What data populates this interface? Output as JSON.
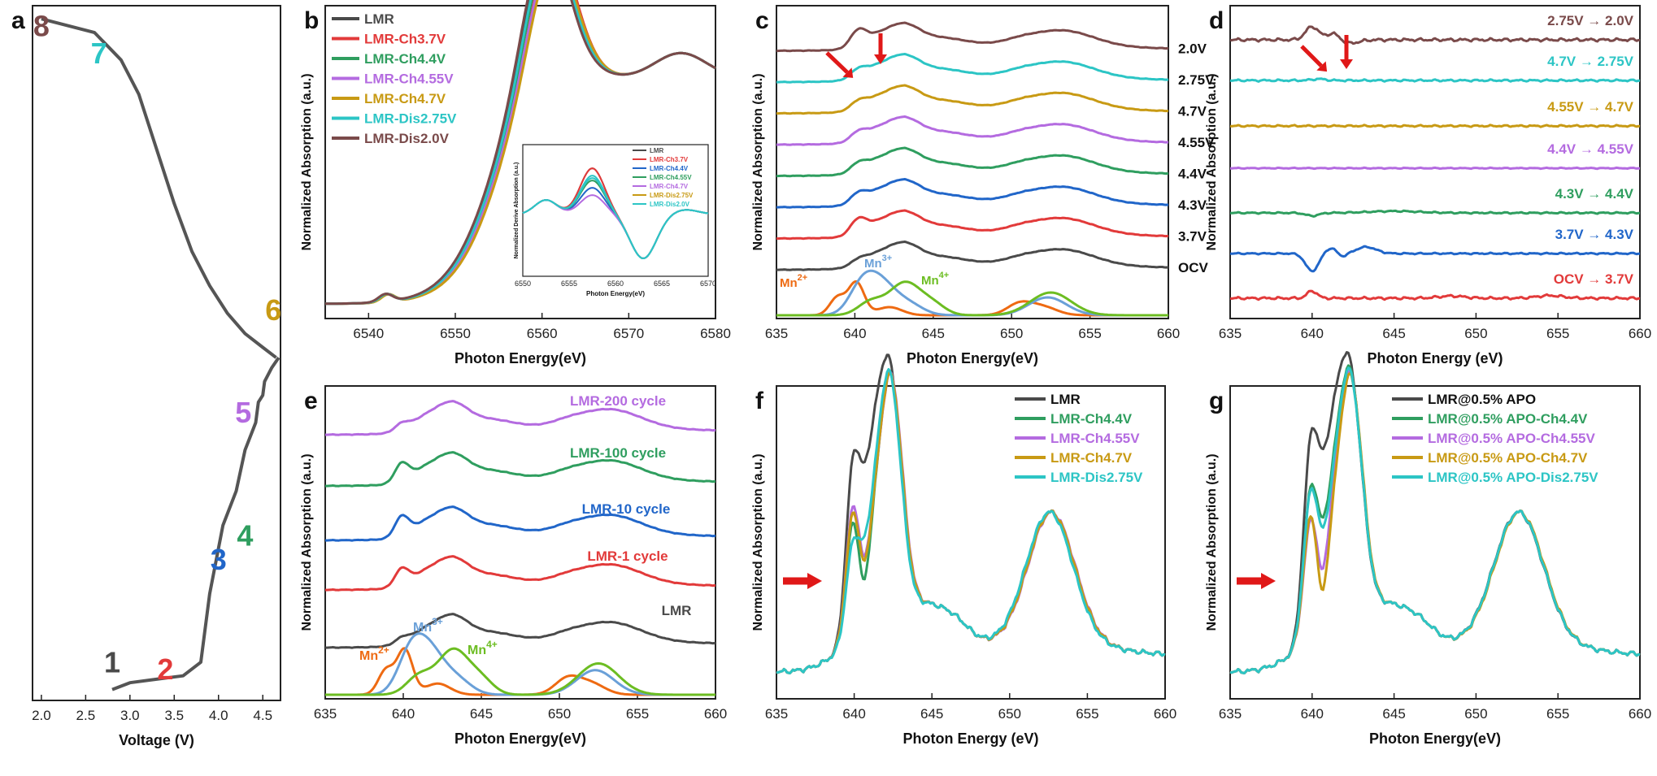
{
  "colors": {
    "black": "#4a4a4a",
    "red": "#e23a3a",
    "green": "#2f9e5f",
    "purple": "#b46be0",
    "gold": "#c89a14",
    "cyan": "#2cc5c5",
    "brown": "#7a4a4a",
    "blue": "#2166c9",
    "orange": "#ee6a12",
    "lightblue": "#6aa0d8",
    "lime": "#6cbd22",
    "arrow": "#e01818"
  },
  "chart_data": [
    {
      "panel": "a",
      "type": "line",
      "title": "",
      "xlabel": "Voltage (V)",
      "ylabel": "",
      "xlim": [
        1.9,
        4.7
      ],
      "xticks": [
        "2.0",
        "2.5",
        "3.0",
        "3.5",
        "4.0",
        "4.5"
      ],
      "points": [
        {
          "label": "8",
          "color": "brown"
        },
        {
          "label": "7",
          "color": "cyan"
        },
        {
          "label": "6",
          "color": "gold"
        },
        {
          "label": "5",
          "color": "purple"
        },
        {
          "label": "4",
          "color": "green"
        },
        {
          "label": "3",
          "color": "blue"
        },
        {
          "label": "2",
          "color": "red"
        },
        {
          "label": "1",
          "color": "black"
        }
      ],
      "curve": {
        "discharge": [
          [
            2.0,
            0.99
          ],
          [
            2.6,
            0.97
          ],
          [
            2.9,
            0.93
          ],
          [
            3.1,
            0.88
          ],
          [
            3.3,
            0.8
          ],
          [
            3.5,
            0.72
          ],
          [
            3.7,
            0.65
          ],
          [
            3.9,
            0.6
          ],
          [
            4.1,
            0.56
          ],
          [
            4.3,
            0.53
          ],
          [
            4.5,
            0.51
          ],
          [
            4.65,
            0.495
          ]
        ],
        "charge": [
          [
            2.8,
            0.01
          ],
          [
            3.0,
            0.02
          ],
          [
            3.3,
            0.025
          ],
          [
            3.6,
            0.03
          ],
          [
            3.8,
            0.05
          ],
          [
            3.9,
            0.15
          ],
          [
            4.05,
            0.25
          ],
          [
            4.2,
            0.3
          ],
          [
            4.3,
            0.36
          ],
          [
            4.42,
            0.4
          ],
          [
            4.45,
            0.43
          ],
          [
            4.5,
            0.44
          ],
          [
            4.52,
            0.46
          ],
          [
            4.6,
            0.48
          ],
          [
            4.68,
            0.495
          ]
        ]
      }
    },
    {
      "panel": "b",
      "type": "line",
      "xlabel": "Photon Energy(eV)",
      "ylabel": "Normalized Absorption (a.u.)",
      "xlim": [
        6535,
        6580
      ],
      "xticks": [
        "6540",
        "6550",
        "6560",
        "6570",
        "6580"
      ],
      "series": [
        {
          "name": "LMR",
          "color": "black"
        },
        {
          "name": "LMR-Ch3.7V",
          "color": "red"
        },
        {
          "name": "LMR-Ch4.4V",
          "color": "green"
        },
        {
          "name": "LMR-Ch4.55V",
          "color": "purple"
        },
        {
          "name": "LMR-Ch4.7V",
          "color": "gold"
        },
        {
          "name": "LMR-Dis2.75V",
          "color": "cyan"
        },
        {
          "name": "LMR-Dis2.0V",
          "color": "brown"
        }
      ],
      "inset": {
        "xlabel": "Photon Energy(eV)",
        "ylabel": "Normalized Derive Absorption (a.u.)",
        "xlim": [
          6550,
          6570
        ],
        "xticks": [
          "6550",
          "6555",
          "6560",
          "6565",
          "6570"
        ],
        "legend": [
          {
            "name": "LMR",
            "color": "black"
          },
          {
            "name": "LMR-Ch3.7V",
            "color": "red"
          },
          {
            "name": "LMR-Ch4.4V",
            "color": "blue"
          },
          {
            "name": "LMR-Ch4.55V",
            "color": "green"
          },
          {
            "name": "LMR-Ch4.7V",
            "color": "purple"
          },
          {
            "name": "LMR-Dis2.75V",
            "color": "gold"
          },
          {
            "name": "LMR-Dis2.0V",
            "color": "cyan"
          }
        ]
      }
    },
    {
      "panel": "c",
      "type": "line",
      "xlabel": "Photon Energy(eV)",
      "ylabel": "Normalized Absorption (a.u.)",
      "xlim": [
        635,
        660
      ],
      "xticks": [
        "635",
        "640",
        "645",
        "650",
        "655",
        "660"
      ],
      "series": [
        {
          "name": "2.0V",
          "color": "brown",
          "offset": 7
        },
        {
          "name": "2.75V",
          "color": "cyan",
          "offset": 6
        },
        {
          "name": "4.7V",
          "color": "gold",
          "offset": 5
        },
        {
          "name": "4.55V",
          "color": "purple",
          "offset": 4
        },
        {
          "name": "4.4V",
          "color": "green",
          "offset": 3
        },
        {
          "name": "4.3V",
          "color": "blue",
          "offset": 2
        },
        {
          "name": "3.7V",
          "color": "red",
          "offset": 1
        },
        {
          "name": "OCV",
          "color": "black",
          "offset": 0
        }
      ],
      "references": [
        {
          "name": "Mn2+",
          "base": "Mn",
          "sup": "2+",
          "color": "orange",
          "peak": 640.2
        },
        {
          "name": "Mn3+",
          "base": "Mn",
          "sup": "3+",
          "color": "lightblue",
          "peak": 641.5
        },
        {
          "name": "Mn4+",
          "base": "Mn",
          "sup": "4+",
          "color": "lime",
          "peak": 643.2
        }
      ]
    },
    {
      "panel": "d",
      "type": "line",
      "xlabel": "Photon Energy (eV)",
      "ylabel": "Normalized Absorption (a.u.)",
      "xlim": [
        635,
        660
      ],
      "xticks": [
        "635",
        "640",
        "645",
        "650",
        "655",
        "660"
      ],
      "series": [
        {
          "name": "2.75V → 2.0V",
          "color": "brown"
        },
        {
          "name": "4.7V → 2.75V",
          "color": "cyan"
        },
        {
          "name": "4.55V → 4.7V",
          "color": "gold"
        },
        {
          "name": "4.4V → 4.55V",
          "color": "purple"
        },
        {
          "name": "4.3V → 4.4V",
          "color": "green"
        },
        {
          "name": "3.7V → 4.3V",
          "color": "blue"
        },
        {
          "name": "OCV → 3.7V",
          "color": "red"
        }
      ]
    },
    {
      "panel": "e",
      "type": "line",
      "xlabel": "Photon Energy(eV)",
      "ylabel": "Normalized Absorption (a.u.)",
      "xlim": [
        635,
        660
      ],
      "xticks": [
        "635",
        "640",
        "645",
        "650",
        "655",
        "660"
      ],
      "series": [
        {
          "name": "LMR-200 cycle",
          "color": "purple",
          "offset": 4
        },
        {
          "name": "LMR-100 cycle",
          "color": "green",
          "offset": 3
        },
        {
          "name": "LMR-10 cycle",
          "color": "blue",
          "offset": 2
        },
        {
          "name": "LMR-1 cycle",
          "color": "red",
          "offset": 1
        },
        {
          "name": "LMR",
          "color": "black",
          "offset": 0
        }
      ],
      "references": [
        {
          "name": "Mn2+",
          "base": "Mn",
          "sup": "2+",
          "color": "orange"
        },
        {
          "name": "Mn3+",
          "base": "Mn",
          "sup": "3+",
          "color": "lightblue"
        },
        {
          "name": "Mn4+",
          "base": "Mn",
          "sup": "4+",
          "color": "lime"
        }
      ]
    },
    {
      "panel": "f",
      "type": "line",
      "xlabel": "Photon Energy (eV)",
      "ylabel": "Normalized Absorption (a.u.)",
      "xlim": [
        635,
        660
      ],
      "xticks": [
        "635",
        "640",
        "645",
        "650",
        "655",
        "660"
      ],
      "series": [
        {
          "name": "LMR",
          "color": "black"
        },
        {
          "name": "LMR-Ch4.4V",
          "color": "green"
        },
        {
          "name": "LMR-Ch4.55V",
          "color": "purple"
        },
        {
          "name": "LMR-Ch4.7V",
          "color": "gold"
        },
        {
          "name": "LMR-Dis2.75V",
          "color": "cyan"
        }
      ]
    },
    {
      "panel": "g",
      "type": "line",
      "xlabel": "Photon Energy(eV)",
      "ylabel": "Normalized Absorption (a.u.)",
      "xlim": [
        635,
        660
      ],
      "xticks": [
        "635",
        "640",
        "645",
        "650",
        "655",
        "660"
      ],
      "series": [
        {
          "name": "LMR@0.5% APO",
          "color": "black"
        },
        {
          "name": "LMR@0.5% APO-Ch4.4V",
          "color": "green"
        },
        {
          "name": "LMR@0.5% APO-Ch4.55V",
          "color": "purple"
        },
        {
          "name": "LMR@0.5% APO-Ch4.7V",
          "color": "gold"
        },
        {
          "name": "LMR@0.5% APO-Dis2.75V",
          "color": "cyan"
        }
      ]
    }
  ]
}
